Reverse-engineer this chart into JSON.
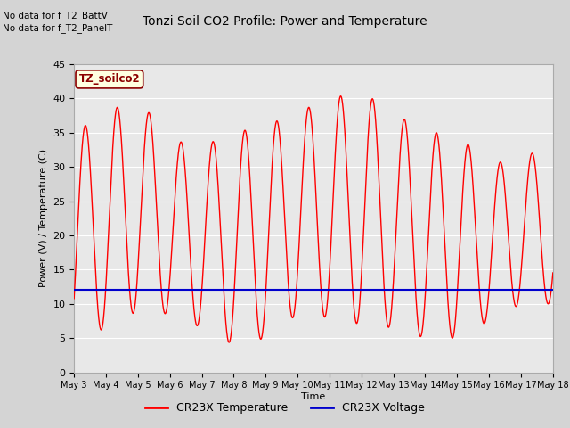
{
  "title": "Tonzi Soil CO2 Profile: Power and Temperature",
  "ylabel": "Power (V) / Temperature (C)",
  "xlabel": "Time",
  "ylim": [
    0,
    45
  ],
  "yticks": [
    0,
    5,
    10,
    15,
    20,
    25,
    30,
    35,
    40,
    45
  ],
  "fig_bg_color": "#d4d4d4",
  "plot_bg_color": "#e8e8e8",
  "no_data_text1": "No data for f_T2_BattV",
  "no_data_text2": "No data for f_T2_PanelT",
  "legend_label_text": "TZ_soilco2",
  "x_tick_labels": [
    "May 3",
    "May 4",
    "May 5",
    "May 6",
    "May 7",
    "May 8",
    "May 9",
    "May 10",
    "May 11",
    "May 12",
    "May 13",
    "May 14",
    "May 15",
    "May 16",
    "May 17",
    "May 18"
  ],
  "red_line_color": "#ff0000",
  "blue_line_color": "#0000cd",
  "blue_line_value": 12.0,
  "legend_entries": [
    "CR23X Temperature",
    "CR23X Voltage"
  ],
  "legend_colors": [
    "#ff0000",
    "#0000cd"
  ],
  "peaks": [
    35,
    38,
    40,
    34,
    33,
    35,
    36,
    38,
    40,
    41,
    38,
    35,
    35,
    30,
    32
  ],
  "mins": [
    4.5,
    6.5,
    9,
    8.5,
    6.5,
    4,
    5,
    8.5,
    8,
    7,
    6.5,
    5,
    5,
    7.5,
    10
  ],
  "n_days": 15
}
